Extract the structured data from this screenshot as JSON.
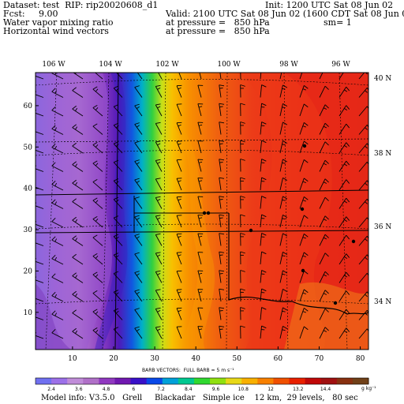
{
  "header": {
    "dataset": "Dataset: test",
    "rip": "RIP: rip20020608_d1",
    "fcst": "Fcst:     9.00",
    "field": "Water vapor mixing ratio",
    "vectors": "Horizontal wind vectors",
    "init": "Init: 1200 UTC Sat 08 Jun 02",
    "valid": "Valid: 2100 UTC Sat 08 Jun 02 (1600 CDT Sat 08 Jun 02)",
    "pressure1": "at pressure =   850 hPa",
    "pressure2": "at pressure =   850 hPa",
    "sm": "sm= 1"
  },
  "map": {
    "lon_labels": [
      "106 W",
      "104 W",
      "102 W",
      "100 W",
      "98 W",
      "96 W"
    ],
    "lat_labels": [
      "40 N",
      "38 N",
      "36 N",
      "34 N"
    ],
    "x_ticks": [
      "10",
      "20",
      "30",
      "40",
      "50",
      "60",
      "70",
      "80"
    ],
    "y_ticks": [
      "10",
      "20",
      "30",
      "40",
      "50",
      "60"
    ],
    "x_range": [
      1,
      82
    ],
    "y_range": [
      1,
      68
    ]
  },
  "colorbar": {
    "title": "BARB VECTORS:  FULL BARB = 5 m s⁻¹",
    "labels": [
      "2.4",
      "3.6",
      "4.8",
      "6",
      "7.2",
      "8.4",
      "9.6",
      "10.8",
      "12",
      "13.2",
      "14.4"
    ],
    "unit": "g kg⁻¹",
    "colors": [
      "#7070f0",
      "#9c70e8",
      "#c08cd8",
      "#b070c8",
      "#9038c0",
      "#7018b0",
      "#3810c8",
      "#0848e8",
      "#00a0d8",
      "#00c890",
      "#30d830",
      "#90e010",
      "#e8d818",
      "#f8b000",
      "#f88000",
      "#f05000",
      "#e82000",
      "#c00808",
      "#a01010",
      "#883010",
      "#704018"
    ]
  },
  "footer": {
    "text": "Model info: V3.5.0   Grell     Blackadar   Simple ice    12 km,  29 levels,   80 sec"
  }
}
